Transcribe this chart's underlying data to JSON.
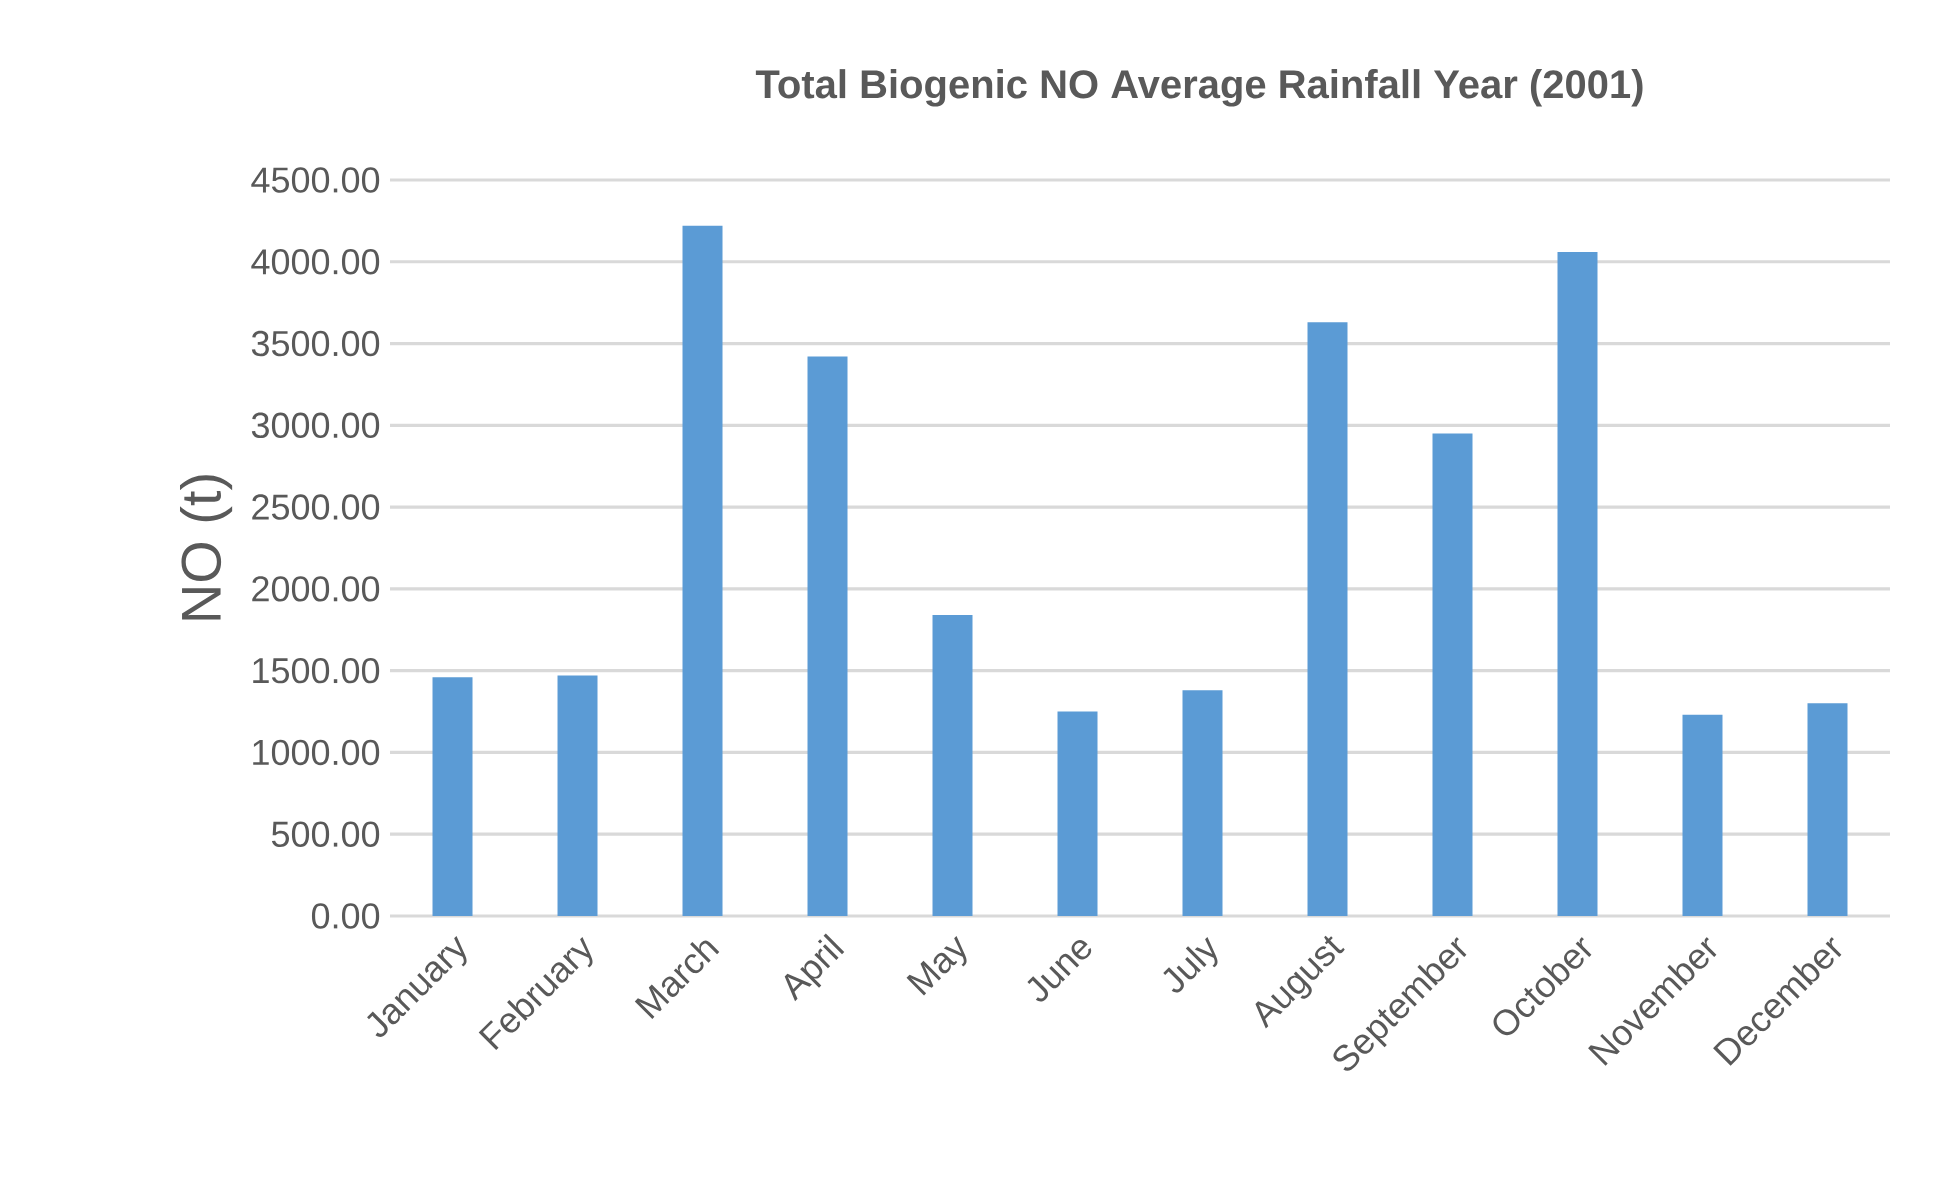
{
  "chart_data": {
    "type": "bar",
    "title": "Total Biogenic NO Average Rainfall Year (2001)",
    "ylabel": "NO (t)",
    "categories": [
      "January",
      "February",
      "March",
      "April",
      "May",
      "June",
      "July",
      "August",
      "September",
      "October",
      "November",
      "December"
    ],
    "values": [
      1460,
      1470,
      4220,
      3420,
      1840,
      1250,
      1380,
      3630,
      2950,
      4060,
      1230,
      1300
    ],
    "color": "#5b9bd5",
    "ylim": [
      0,
      4500
    ],
    "yticks": [
      {
        "value": 0,
        "label": "0.00"
      },
      {
        "value": 500,
        "label": "500.00"
      },
      {
        "value": 1000,
        "label": "1000.00"
      },
      {
        "value": 1500,
        "label": "1500.00"
      },
      {
        "value": 2000,
        "label": "2000.00"
      },
      {
        "value": 2500,
        "label": "2500.00"
      },
      {
        "value": 3000,
        "label": "3000.00"
      },
      {
        "value": 3500,
        "label": "3500.00"
      },
      {
        "value": 4000,
        "label": "4000.00"
      },
      {
        "value": 4500,
        "label": "4500.00"
      }
    ],
    "grid": "y"
  }
}
